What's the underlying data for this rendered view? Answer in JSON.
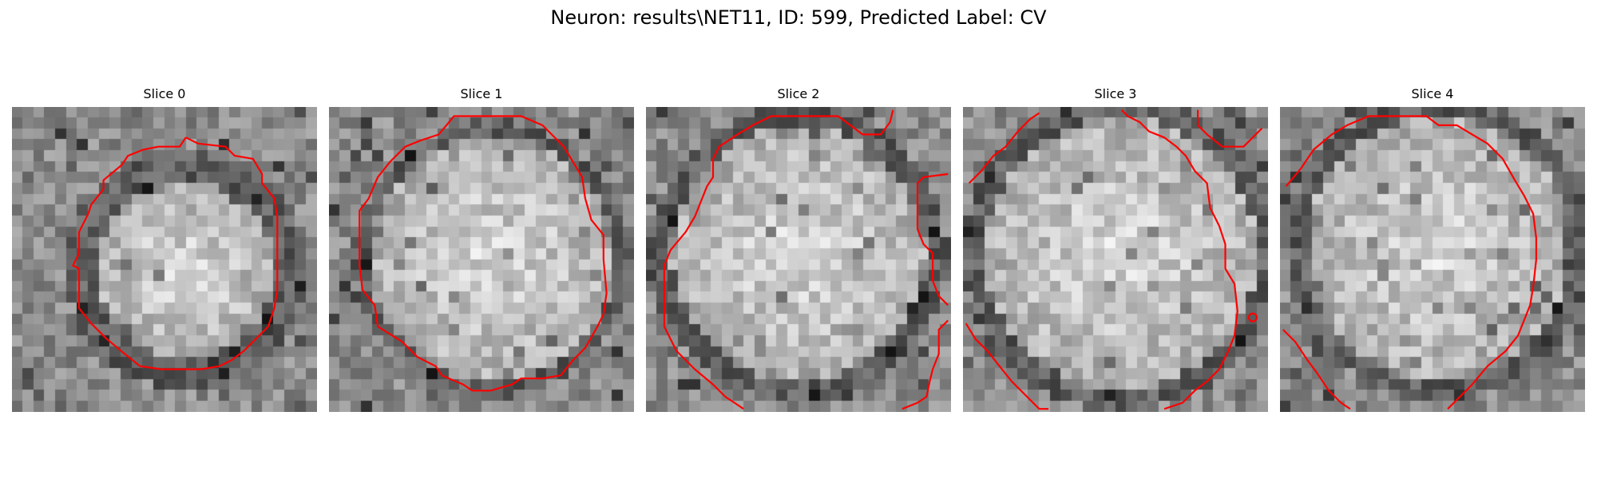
{
  "figure": {
    "title": "Neuron: results\\NET11, ID: 599, Predicted Label: CV"
  },
  "slices": [
    {
      "title": "Slice 0"
    },
    {
      "title": "Slice 1"
    },
    {
      "title": "Slice 2"
    },
    {
      "title": "Slice 3"
    },
    {
      "title": "Slice 4"
    }
  ],
  "style": {
    "contour_color": "#ff0000",
    "colormap": "gray"
  }
}
